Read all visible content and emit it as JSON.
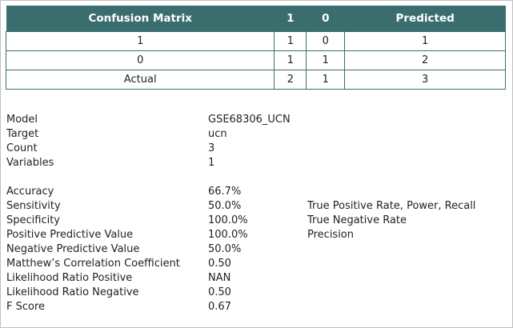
{
  "matrix": {
    "headers": {
      "title": "Confusion Matrix",
      "col1": "1",
      "col0": "0",
      "predicted": "Predicted"
    },
    "rows": [
      {
        "label": "1",
        "c1": "1",
        "c0": "0",
        "pred": "1"
      },
      {
        "label": "0",
        "c1": "1",
        "c0": "1",
        "pred": "2"
      },
      {
        "label": "Actual",
        "c1": "2",
        "c0": "1",
        "pred": "3"
      }
    ]
  },
  "info": {
    "model_label": "Model",
    "model_value": "GSE68306_UCN",
    "target_label": "Target",
    "target_value": "ucn",
    "count_label": "Count",
    "count_value": "3",
    "variables_label": "Variables",
    "variables_value": "1"
  },
  "metrics": {
    "accuracy_label": "Accuracy",
    "accuracy_value": "66.7%",
    "sensitivity_label": "Sensitivity",
    "sensitivity_value": "50.0%",
    "sensitivity_desc": "True Positive Rate, Power, Recall",
    "specificity_label": "Specificity",
    "specificity_value": "100.0%",
    "specificity_desc": "True Negative Rate",
    "ppv_label": "Positive Predictive Value",
    "ppv_value": "100.0%",
    "ppv_desc": "Precision",
    "npv_label": "Negative Predictive Value",
    "npv_value": "50.0%",
    "mcc_label": "Matthew’s Correlation Coefficient",
    "mcc_value": "0.50",
    "lrp_label": "Likelihood Ratio Positive",
    "lrp_value": "NAN",
    "lrn_label": "Likelihood Ratio Negative",
    "lrn_value": "0.50",
    "fscore_label": "F Score",
    "fscore_value": "0.67"
  },
  "colors": {
    "header_bg": "#3a6e6e",
    "border": "#3a6e6e"
  }
}
